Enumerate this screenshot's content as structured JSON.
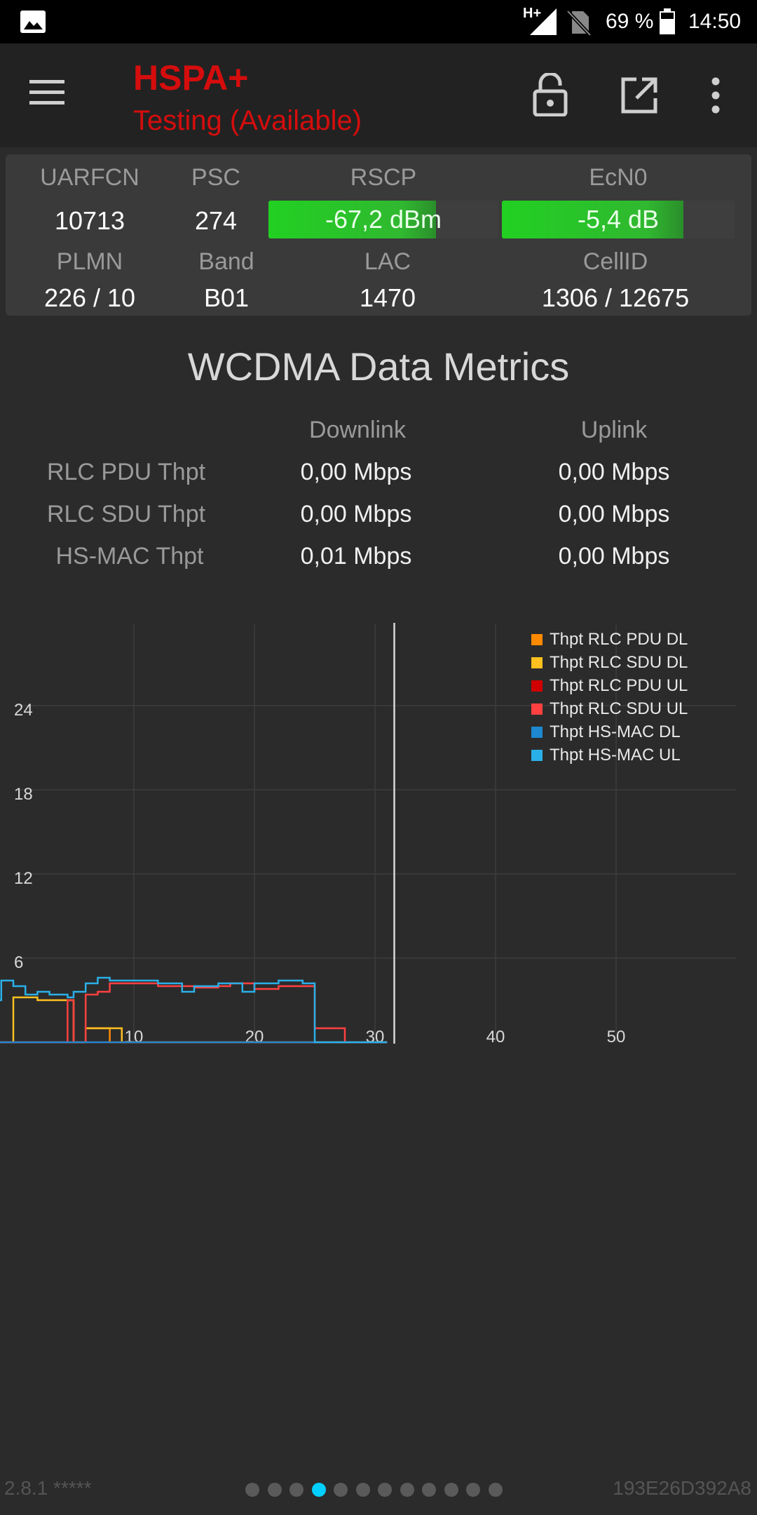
{
  "status_bar": {
    "network_type": "H+",
    "battery_percent": "69 %",
    "time": "14:50"
  },
  "toolbar": {
    "title": "HSPA+",
    "subtitle": "Testing (Available)"
  },
  "cell_info": {
    "uarfcn": {
      "label": "UARFCN",
      "value": "10713"
    },
    "psc": {
      "label": "PSC",
      "value": "274"
    },
    "rscp": {
      "label": "RSCP",
      "value": "-67,2 dBm",
      "level": 0.73
    },
    "ecn0": {
      "label": "EcN0",
      "value": "-5,4 dB",
      "level": 0.78
    },
    "plmn": {
      "label": "PLMN",
      "value": "226 / 10"
    },
    "band": {
      "label": "Band",
      "value": "B01"
    },
    "lac": {
      "label": "LAC",
      "value": "1470"
    },
    "cellid": {
      "label": "CellID",
      "value": "1306 / 12675"
    }
  },
  "metrics": {
    "title": "WCDMA Data Metrics",
    "downlink_header": "Downlink",
    "uplink_header": "Uplink",
    "rows": [
      {
        "label": "RLC PDU Thpt",
        "downlink": "0,00 Mbps",
        "uplink": "0,00 Mbps"
      },
      {
        "label": "RLC SDU Thpt",
        "downlink": "0,00 Mbps",
        "uplink": "0,00 Mbps"
      },
      {
        "label": "HS-MAC Thpt",
        "downlink": "0,01 Mbps",
        "uplink": "0,00 Mbps"
      }
    ]
  },
  "chart_data": {
    "type": "line",
    "xlim": [
      -4,
      57
    ],
    "ylim": [
      0,
      30
    ],
    "xticks": [
      10,
      20,
      30,
      40,
      50
    ],
    "yticks": [
      6,
      12,
      18,
      24
    ],
    "grid": true,
    "legend_position": "top-right",
    "cursor_x": 31.6,
    "series": [
      {
        "name": "Thpt RLC PDU DL",
        "color": "#ff8a00",
        "step": true,
        "x": [
          -3,
          0,
          2,
          5,
          5.5,
          6,
          8,
          31
        ],
        "y": [
          0,
          0,
          0,
          0,
          0,
          1,
          0,
          0
        ]
      },
      {
        "name": "Thpt RLC SDU DL",
        "color": "#ffc020",
        "step": true,
        "x": [
          -3,
          -1,
          0,
          2,
          4.5,
          5,
          6,
          8,
          9,
          31
        ],
        "y": [
          0,
          0,
          3.2,
          3,
          3,
          0,
          1,
          1,
          0,
          0
        ]
      },
      {
        "name": "Thpt RLC PDU UL",
        "color": "#d00000",
        "step": true,
        "x": [
          -3,
          31
        ],
        "y": [
          0,
          0
        ]
      },
      {
        "name": "Thpt RLC SDU UL",
        "color": "#ff4040",
        "step": true,
        "x": [
          -3,
          0,
          2,
          4.5,
          5,
          6,
          7,
          8,
          9,
          12,
          14,
          15,
          17,
          18,
          20,
          22,
          23,
          24,
          25,
          27.5,
          30,
          31
        ],
        "y": [
          0,
          0,
          0,
          3,
          0,
          3.4,
          3.6,
          4.2,
          4.2,
          4,
          4,
          3.9,
          4,
          4.2,
          3.8,
          4,
          4,
          4,
          1,
          0,
          0,
          0
        ]
      },
      {
        "name": "Thpt HS-MAC DL",
        "color": "#1e88d0",
        "step": true,
        "x": [
          -3,
          31
        ],
        "y": [
          0,
          0
        ]
      },
      {
        "name": "Thpt HS-MAC UL",
        "color": "#2ab0e8",
        "step": true,
        "x": [
          -4,
          -3,
          -2,
          -1,
          0,
          1,
          2,
          3,
          4.5,
          5,
          6,
          7,
          8,
          10,
          12,
          14,
          15,
          17,
          18,
          19,
          20,
          22,
          23,
          24,
          25,
          31
        ],
        "y": [
          3.6,
          3,
          3,
          4.4,
          4,
          3.4,
          3.6,
          3.4,
          3.2,
          3.6,
          4.2,
          4.6,
          4.4,
          4.4,
          4.2,
          3.6,
          4.0,
          4.2,
          4.2,
          3.6,
          4.2,
          4.4,
          4.4,
          4.2,
          0,
          0
        ]
      }
    ]
  },
  "footer": {
    "version": "2.8.1 *****",
    "device_id": "193E26D392A8",
    "page_count": 12,
    "active_page": 4
  }
}
